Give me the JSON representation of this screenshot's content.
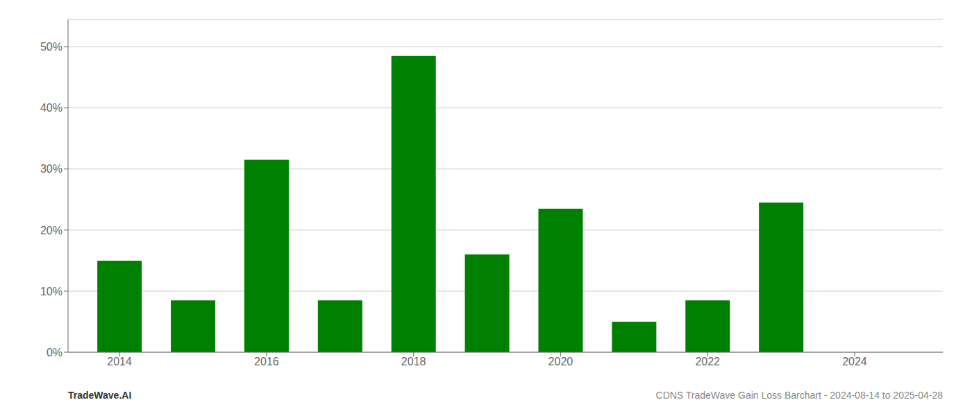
{
  "chart_data": {
    "type": "bar",
    "x": [
      2014,
      2015,
      2016,
      2017,
      2018,
      2019,
      2020,
      2021,
      2022,
      2023,
      2024
    ],
    "values": [
      0.15,
      0.085,
      0.315,
      0.085,
      0.485,
      0.16,
      0.235,
      0.05,
      0.085,
      0.245,
      0.0
    ],
    "color": "#008000",
    "xlim": [
      2013.3,
      2025.2
    ],
    "xticks": [
      2014,
      2016,
      2018,
      2020,
      2022,
      2024
    ],
    "ylim": [
      0,
      0.545
    ],
    "yticks": [
      {
        "value": 0.0,
        "label": "0%"
      },
      {
        "value": 0.1,
        "label": "10%"
      },
      {
        "value": 0.2,
        "label": "20%"
      },
      {
        "value": 0.3,
        "label": "30%"
      },
      {
        "value": 0.4,
        "label": "40%"
      },
      {
        "value": 0.5,
        "label": "50%"
      }
    ],
    "grid": true,
    "annotations": [
      {
        "text": "TradeWave.AI"
      },
      {
        "text": "CDNS TradeWave Gain Loss Barchart - 2024-08-14 to 2025-04-28"
      }
    ]
  }
}
